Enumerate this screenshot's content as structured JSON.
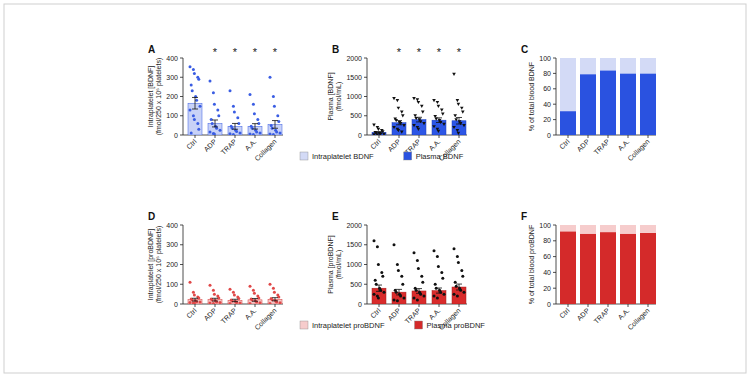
{
  "chart_data": [
    {
      "type": "bar",
      "title": "A",
      "ylabel": "Intraplatelet [BDNF] (fmol/250 x 10⁶ platelets)",
      "categories": [
        "Ctrl",
        "ADP",
        "TRAP",
        "A.A.",
        "Collagen"
      ],
      "values": [
        165,
        60,
        45,
        45,
        55
      ],
      "errors": [
        30,
        18,
        15,
        14,
        20
      ],
      "points": [
        [
          355,
          340,
          320,
          300,
          290,
          260,
          230,
          200,
          180,
          150,
          130,
          100,
          80,
          60,
          30,
          10
        ],
        [
          280,
          220,
          160,
          130,
          100,
          80,
          60,
          45,
          35,
          25,
          15,
          8,
          5
        ],
        [
          230,
          150,
          120,
          90,
          60,
          45,
          35,
          25,
          18,
          10,
          6,
          3
        ],
        [
          210,
          160,
          110,
          80,
          60,
          45,
          35,
          25,
          15,
          10,
          5,
          2
        ],
        [
          300,
          200,
          150,
          100,
          70,
          50,
          35,
          25,
          15,
          10,
          5,
          3
        ]
      ],
      "annotations": [
        null,
        "*",
        "*",
        "*",
        "*"
      ],
      "color": "#c8d2f7",
      "marker": "circle",
      "ylim": [
        0,
        400
      ],
      "yticks": [
        0,
        100,
        200,
        300,
        400
      ]
    },
    {
      "type": "bar",
      "title": "B",
      "ylabel": "Plasma [BDNF] (fmol/mL)",
      "categories": [
        "Ctrl",
        "ADP",
        "TRAP",
        "A.A.",
        "Collagen"
      ],
      "values": [
        70,
        320,
        400,
        385,
        370
      ],
      "errors": [
        20,
        55,
        60,
        60,
        85
      ],
      "points": [
        [
          260,
          200,
          150,
          120,
          90,
          70,
          50,
          40,
          30,
          20,
          10,
          5
        ],
        [
          950,
          900,
          700,
          600,
          500,
          420,
          380,
          330,
          300,
          250,
          200,
          150,
          120,
          80
        ],
        [
          950,
          920,
          850,
          750,
          600,
          500,
          430,
          400,
          350,
          300,
          250,
          200,
          150
        ],
        [
          900,
          850,
          750,
          650,
          550,
          480,
          420,
          380,
          330,
          280,
          220,
          150,
          100
        ],
        [
          1580,
          900,
          800,
          700,
          600,
          500,
          400,
          350,
          300,
          250,
          200,
          120,
          50
        ]
      ],
      "annotations": [
        null,
        "*",
        "*",
        "*",
        "*"
      ],
      "color": "#2c56e6",
      "marker": "triangle",
      "ylim": [
        0,
        2000
      ],
      "yticks": [
        0,
        500,
        1000,
        1500,
        2000
      ]
    },
    {
      "type": "stacked_bar",
      "title": "C",
      "ylabel": "% of total blood BDNF",
      "categories": [
        "Ctrl",
        "ADP",
        "TRAP",
        "A.A.",
        "Collagen"
      ],
      "series": [
        {
          "name": "Intraplatelet BDNF",
          "color": "#d3daf6",
          "values": [
            69,
            21,
            16,
            20,
            20
          ]
        },
        {
          "name": "Plasma BDNF",
          "color": "#2a52e0",
          "values": [
            31,
            79,
            84,
            80,
            80
          ]
        }
      ],
      "stacked": true,
      "legend": "bottom",
      "ylim": [
        0,
        100
      ],
      "yticks": [
        0,
        20,
        40,
        60,
        80,
        100
      ]
    },
    {
      "type": "bar",
      "title": "D",
      "ylabel": "Intraplatelet [proBDNF] (fmol/250 x 10⁶ platelets)",
      "categories": [
        "Ctrl",
        "ADP",
        "TRAP",
        "A.A.",
        "Collagen"
      ],
      "values": [
        22,
        22,
        18,
        21,
        24
      ],
      "errors": [
        7,
        7,
        6,
        7,
        8
      ],
      "points": [
        [
          110,
          60,
          45,
          35,
          30,
          25,
          20,
          15,
          12,
          10,
          8,
          5,
          3
        ],
        [
          95,
          70,
          50,
          40,
          30,
          25,
          20,
          15,
          10,
          8,
          5,
          3
        ],
        [
          75,
          60,
          45,
          35,
          28,
          20,
          15,
          12,
          8,
          5,
          3
        ],
        [
          90,
          70,
          55,
          40,
          30,
          25,
          20,
          15,
          10,
          6,
          3
        ],
        [
          100,
          80,
          60,
          45,
          35,
          28,
          22,
          15,
          10,
          6,
          3
        ]
      ],
      "color": "#f4c7c7",
      "marker": "circle",
      "ylim": [
        0,
        400
      ],
      "yticks": [
        0,
        100,
        200,
        300,
        400
      ]
    },
    {
      "type": "bar",
      "title": "E",
      "ylabel": "Plasma [proBDNF] (fmol/mL)",
      "categories": [
        "Ctrl",
        "ADP",
        "TRAP",
        "A.A.",
        "Collagen"
      ],
      "values": [
        400,
        300,
        330,
        340,
        430
      ],
      "errors": [
        80,
        70,
        60,
        65,
        75
      ],
      "points": [
        [
          1600,
          1450,
          1000,
          800,
          700,
          600,
          500,
          400,
          350,
          300,
          250,
          200,
          150
        ],
        [
          1500,
          1000,
          850,
          700,
          500,
          350,
          300,
          250,
          200,
          150,
          100,
          80
        ],
        [
          1300,
          1100,
          900,
          700,
          550,
          400,
          350,
          300,
          250,
          200,
          150,
          100
        ],
        [
          1350,
          1200,
          950,
          800,
          650,
          500,
          400,
          350,
          300,
          250,
          200,
          150
        ],
        [
          1400,
          1200,
          1050,
          850,
          700,
          550,
          450,
          400,
          350,
          300,
          250,
          200
        ]
      ],
      "color": "#d92b2b",
      "marker": "circle",
      "ylim": [
        0,
        2000
      ],
      "yticks": [
        0,
        500,
        1000,
        1500,
        2000
      ]
    },
    {
      "type": "stacked_bar",
      "title": "F",
      "ylabel": "% of total blood proBDNF",
      "categories": [
        "Ctrl",
        "ADP",
        "TRAP",
        "A.A.",
        "Collagen"
      ],
      "series": [
        {
          "name": "Intraplatelet proBDNF",
          "color": "#f6cccc",
          "values": [
            8,
            11,
            9,
            11,
            10
          ]
        },
        {
          "name": "Plasma proBDNF",
          "color": "#d42a2a",
          "values": [
            92,
            89,
            91,
            89,
            90
          ]
        }
      ],
      "stacked": true,
      "legend": "bottom",
      "ylim": [
        0,
        100
      ],
      "yticks": [
        0,
        20,
        40,
        60,
        80,
        100
      ]
    }
  ]
}
